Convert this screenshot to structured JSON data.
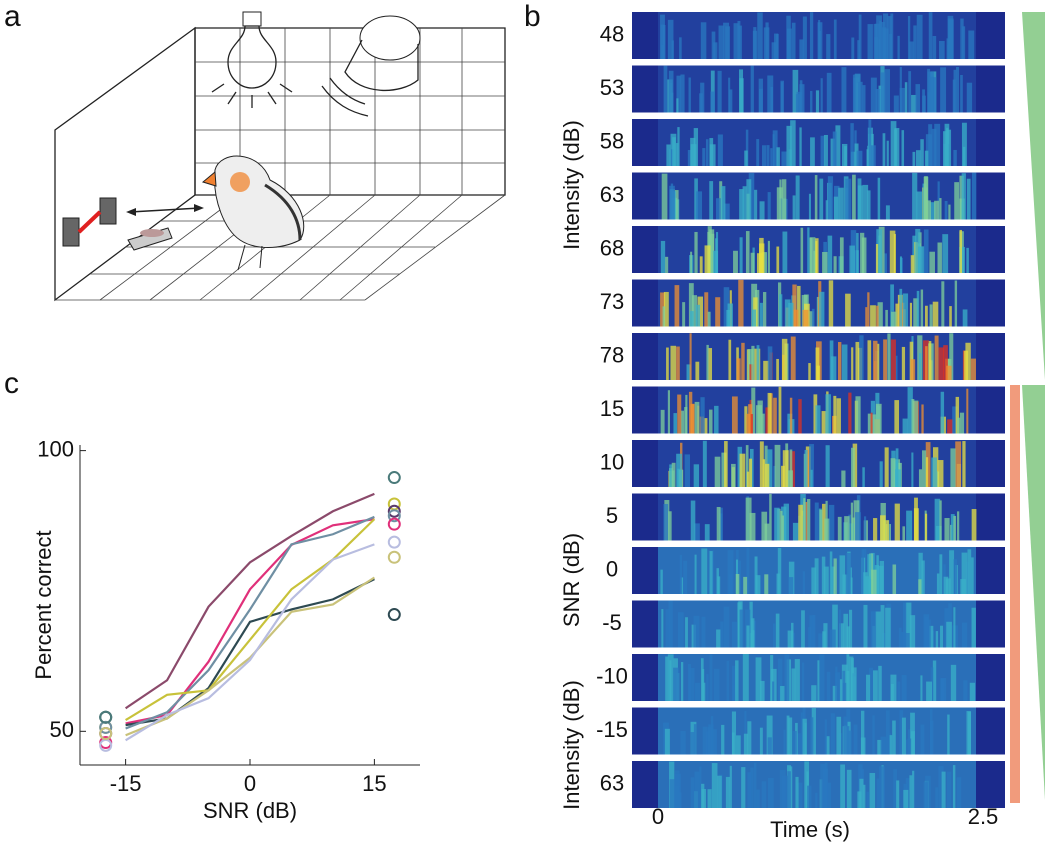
{
  "panel_labels": [
    "a",
    "b",
    "c"
  ],
  "spectrogram": {
    "row_labels": [
      "48",
      "53",
      "58",
      "63",
      "68",
      "73",
      "78",
      "15",
      "10",
      "5",
      "0",
      "-5",
      "-10",
      "-15",
      "63"
    ],
    "axis_labels": [
      "Intensity (dB)",
      "SNR (dB)",
      "Intensity (dB)"
    ],
    "x_label": "Time (s)",
    "x_ticks": [
      "0",
      "2.5"
    ]
  },
  "chart_data": {
    "type": "line",
    "x_label": "SNR (dB)",
    "y_label": "Percent correct",
    "x": [
      -15,
      -10,
      -5,
      0,
      5,
      10,
      15
    ],
    "xlim": [
      -20.5,
      20.5
    ],
    "ylim": [
      44,
      101
    ],
    "xticks": [
      -15,
      0,
      15
    ],
    "yticks": [
      50,
      100
    ],
    "series": [
      {
        "color": "#8b4a6b",
        "values": [
          54.1,
          59.1,
          72.2,
          80.1,
          84.8,
          89.2,
          92.3
        ]
      },
      {
        "color": "#e0307a",
        "values": [
          51.4,
          52.9,
          62.4,
          75.3,
          83.2,
          86.7,
          87.8
        ]
      },
      {
        "color": "#2e4a52",
        "values": [
          51.1,
          52.3,
          57.7,
          69.5,
          71.7,
          73.5,
          77.1
        ]
      },
      {
        "color": "#6f8fa3",
        "values": [
          50.5,
          53.4,
          60.9,
          71.7,
          83.3,
          85.1,
          88.2
        ]
      },
      {
        "color": "#c8c23a",
        "values": [
          52.0,
          56.5,
          57.3,
          66.3,
          75.3,
          80.6,
          87.8
        ]
      },
      {
        "color": "#c9c27a",
        "values": [
          49.3,
          52.3,
          57.3,
          63.1,
          71.3,
          72.6,
          77.4
        ]
      },
      {
        "color": "#b8bde0",
        "values": [
          48.4,
          52.9,
          55.9,
          62.7,
          73.5,
          80.6,
          83.3
        ]
      }
    ],
    "markers": [
      {
        "color": "#2e4a52",
        "x": [
          -17.4,
          17.4
        ],
        "values": [
          52.5,
          70.8
        ]
      },
      {
        "color": "#c8c23a",
        "x": [
          -17.4,
          17.4
        ],
        "values": [
          50.7,
          90.5
        ]
      },
      {
        "color": "#5a3a6a",
        "x": [
          -17.4,
          17.4
        ],
        "values": [
          49.6,
          89.2
        ]
      },
      {
        "color": "#6f8fa3",
        "x": [
          -17.4,
          17.4
        ],
        "values": [
          50.7,
          88.4
        ]
      },
      {
        "color": "#e0307a",
        "x": [
          -17.4,
          17.4
        ],
        "values": [
          48.0,
          86.9
        ]
      },
      {
        "color": "#b8bde0",
        "x": [
          -17.4,
          17.4
        ],
        "values": [
          47.5,
          83.7
        ]
      },
      {
        "color": "#c9c27a",
        "x": [
          -17.4,
          17.4
        ],
        "values": [
          49.6,
          81.0
        ]
      },
      {
        "color": "#4a7a7a",
        "x": [
          -17.4,
          17.4
        ],
        "values": [
          52.5,
          95.2
        ]
      }
    ]
  }
}
